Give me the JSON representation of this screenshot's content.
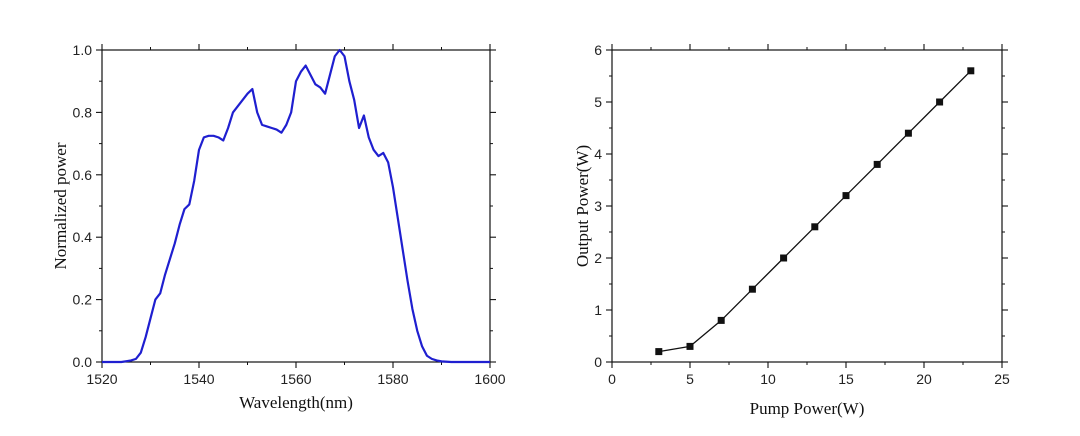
{
  "chart_data": [
    {
      "type": "line",
      "title": "",
      "xlabel": "Wavelength(nm)",
      "ylabel": "Normalized power",
      "xlim": [
        1520,
        1600
      ],
      "ylim": [
        0.0,
        1.0
      ],
      "xticks": [
        1520,
        1540,
        1560,
        1580,
        1600
      ],
      "yticks": [
        0.0,
        0.2,
        0.4,
        0.6,
        0.8,
        1.0
      ],
      "xtick_labels": [
        "1520",
        "1540",
        "1560",
        "1580",
        "1600"
      ],
      "ytick_labels": [
        "0.0",
        "0.2",
        "0.4",
        "0.6",
        "0.8",
        "1.0"
      ],
      "grid": false,
      "line_color": "#1f1fd0",
      "series": [
        {
          "x": [
            1520,
            1524,
            1526,
            1527,
            1528,
            1529,
            1530,
            1531,
            1532,
            1533,
            1534,
            1535,
            1536,
            1537,
            1538,
            1539,
            1540,
            1541,
            1542,
            1543,
            1544,
            1545,
            1546,
            1547,
            1548,
            1549,
            1550,
            1551,
            1552,
            1553,
            1554,
            1555,
            1556,
            1557,
            1558,
            1559,
            1560,
            1561,
            1562,
            1563,
            1564,
            1565,
            1566,
            1567,
            1568,
            1569,
            1570,
            1571,
            1572,
            1573,
            1574,
            1575,
            1576,
            1577,
            1578,
            1579,
            1580,
            1581,
            1582,
            1583,
            1584,
            1585,
            1586,
            1587,
            1588,
            1589,
            1590,
            1592,
            1595,
            1600
          ],
          "y": [
            0.0,
            0.0,
            0.005,
            0.01,
            0.03,
            0.08,
            0.14,
            0.2,
            0.22,
            0.28,
            0.33,
            0.38,
            0.44,
            0.49,
            0.505,
            0.58,
            0.68,
            0.72,
            0.725,
            0.725,
            0.72,
            0.71,
            0.75,
            0.8,
            0.82,
            0.84,
            0.86,
            0.875,
            0.8,
            0.76,
            0.755,
            0.75,
            0.745,
            0.735,
            0.76,
            0.8,
            0.9,
            0.93,
            0.95,
            0.92,
            0.89,
            0.88,
            0.86,
            0.92,
            0.98,
            1.0,
            0.98,
            0.9,
            0.84,
            0.75,
            0.79,
            0.72,
            0.68,
            0.66,
            0.67,
            0.64,
            0.56,
            0.46,
            0.36,
            0.26,
            0.17,
            0.1,
            0.05,
            0.02,
            0.01,
            0.005,
            0.002,
            0.0,
            0.0,
            0.0
          ]
        }
      ]
    },
    {
      "type": "line",
      "title": "",
      "xlabel": "Pump Power(W)",
      "ylabel": "Output Power(W)",
      "xlim": [
        0,
        25
      ],
      "ylim": [
        0,
        6
      ],
      "xticks": [
        0,
        5,
        10,
        15,
        20,
        25
      ],
      "yticks": [
        0,
        1,
        2,
        3,
        4,
        5,
        6
      ],
      "xtick_labels": [
        "0",
        "5",
        "10",
        "15",
        "20",
        "25"
      ],
      "ytick_labels": [
        "0",
        "1",
        "2",
        "3",
        "4",
        "5",
        "6"
      ],
      "grid": false,
      "line_color": "#111111",
      "marker": "square",
      "series": [
        {
          "x": [
            3,
            5,
            7,
            9,
            11,
            13,
            15,
            17,
            19,
            21,
            23
          ],
          "y": [
            0.2,
            0.3,
            0.8,
            1.4,
            2.0,
            2.6,
            3.2,
            3.8,
            4.4,
            5.0,
            5.6
          ]
        }
      ]
    }
  ]
}
